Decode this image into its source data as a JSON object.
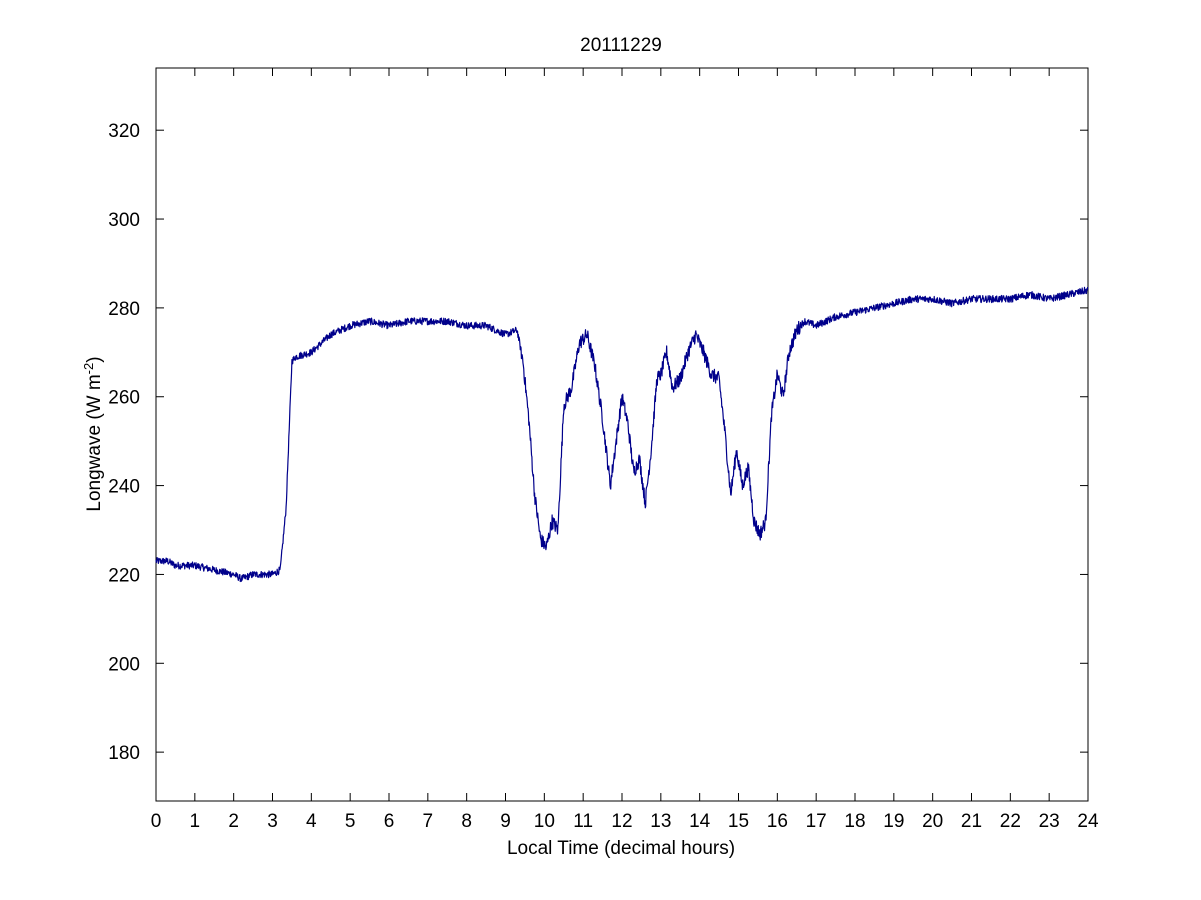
{
  "chart_data": {
    "type": "line",
    "title": "20111229",
    "xlabel": "Local Time (decimal hours)",
    "ylabel": {
      "main": "Longwave (W m",
      "superscript": "-2",
      "close": ")"
    },
    "xlim": [
      0,
      24
    ],
    "ylim": [
      169,
      334
    ],
    "xticks": [
      0,
      1,
      2,
      3,
      4,
      5,
      6,
      7,
      8,
      9,
      10,
      11,
      12,
      13,
      14,
      15,
      16,
      17,
      18,
      19,
      20,
      21,
      22,
      23,
      24
    ],
    "yticks": [
      180,
      200,
      220,
      240,
      260,
      280,
      300,
      320
    ],
    "grid": false,
    "line_color": "#00008B",
    "series": [
      {
        "x": [
          0,
          0.3,
          0.5,
          1.0,
          1.5,
          2.0,
          2.2,
          2.5,
          3.0,
          3.2,
          3.35,
          3.5,
          3.6,
          4.0,
          4.5,
          5.0,
          5.5,
          6.0,
          6.5,
          7.0,
          7.5,
          8.0,
          8.5,
          9.0,
          9.3,
          9.45,
          9.6,
          9.75,
          9.9,
          10.05,
          10.2,
          10.35,
          10.5,
          10.7,
          10.9,
          11.1,
          11.3,
          11.5,
          11.7,
          11.85,
          12.0,
          12.15,
          12.3,
          12.45,
          12.6,
          12.75,
          12.9,
          13.0,
          13.15,
          13.3,
          13.5,
          13.7,
          13.9,
          14.1,
          14.3,
          14.5,
          14.65,
          14.8,
          14.95,
          15.1,
          15.25,
          15.4,
          15.55,
          15.7,
          15.85,
          16.0,
          16.15,
          16.3,
          16.5,
          16.7,
          17.0,
          17.5,
          18.0,
          18.5,
          19.0,
          19.5,
          20.0,
          20.5,
          21.0,
          21.5,
          22.0,
          22.5,
          23.0,
          23.5,
          24.0
        ],
        "y": [
          223,
          223,
          222,
          222,
          221,
          220,
          219,
          220,
          220,
          221,
          235,
          268,
          269,
          270,
          274,
          276,
          277,
          276,
          277,
          277,
          277,
          276,
          276,
          274,
          275,
          268,
          255,
          238,
          228,
          226,
          232,
          230,
          258,
          262,
          272,
          274,
          267,
          255,
          240,
          250,
          260,
          254,
          243,
          246,
          236,
          248,
          264,
          265,
          270,
          262,
          264,
          270,
          274,
          270,
          265,
          264,
          252,
          238,
          248,
          240,
          244,
          232,
          229,
          232,
          256,
          265,
          260,
          270,
          275,
          277,
          276,
          278,
          279,
          280,
          281,
          282,
          282,
          281,
          282,
          282,
          282,
          283,
          282,
          283,
          284
        ]
      }
    ]
  }
}
